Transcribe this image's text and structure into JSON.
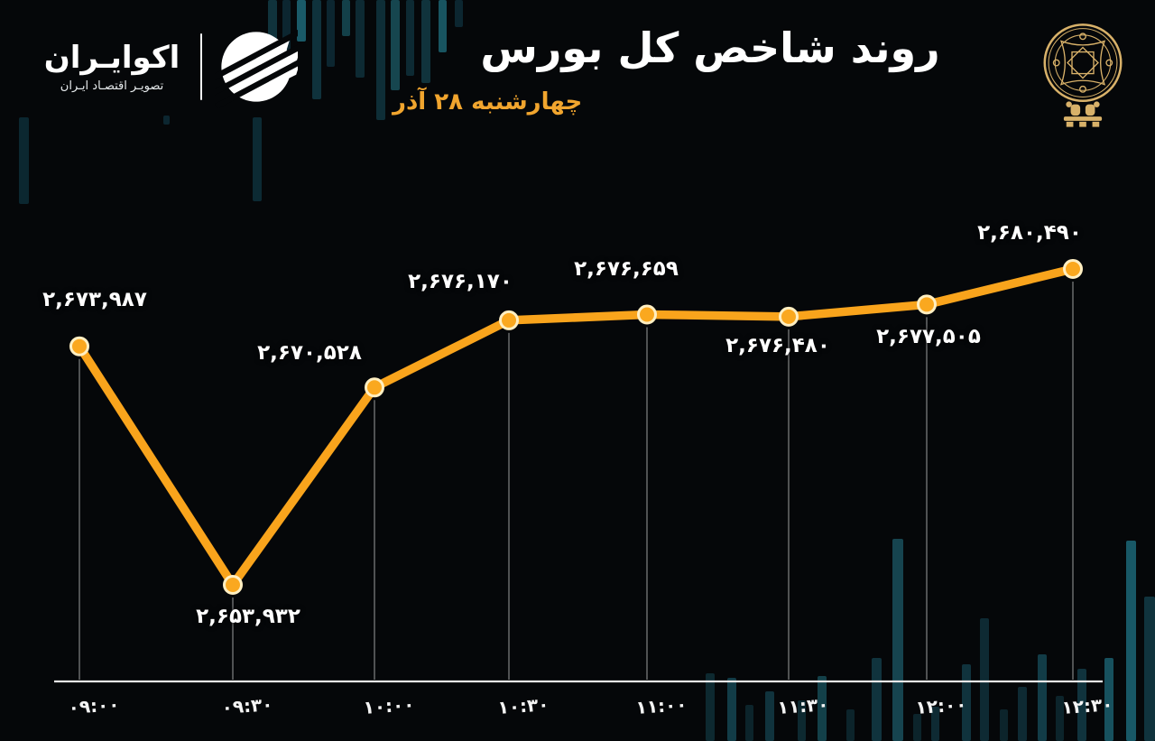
{
  "brand": {
    "name": "اکوایـران",
    "tagline": "تصویـر اقتصـاد ایـران"
  },
  "header": {
    "title": "روند شاخص کل بورس",
    "date": "چهارشنبه ۲۸ آذر"
  },
  "colors": {
    "background": "#050709",
    "line": "#F9A41C",
    "marker_fill": "#FAA81F",
    "marker_ring": "#FFEFC2",
    "axis": "#E8E8E8",
    "drop_line": "rgba(255,255,255,0.5)",
    "title": "#FFFFFF",
    "date": "#F1A52E",
    "emblem_gold": "#D8B169"
  },
  "chart_data": {
    "type": "line",
    "title": "روند شاخص کل بورس",
    "subtitle": "چهارشنبه ۲۸ آذر",
    "x": [
      "09:00",
      "09:30",
      "10:00",
      "10:30",
      "11:00",
      "11:30",
      "12:00",
      "12:30"
    ],
    "x_labels_fa": [
      "۰۹:۰۰",
      "۰۹:۳۰",
      "۱۰:۰۰",
      "۱۰:۳۰",
      "۱۱:۰۰",
      "۱۱:۳۰",
      "۱۲:۰۰",
      "۱۲:۳۰"
    ],
    "values": [
      2673987,
      2653932,
      2670528,
      2676170,
      2676659,
      2676480,
      2677505,
      2680490
    ],
    "value_labels_fa": [
      "۲,۶۷۳,۹۸۷",
      "۲,۶۵۳,۹۳۲",
      "۲,۶۷۰,۵۲۸",
      "۲,۶۷۶,۱۷۰",
      "۲,۶۷۶,۶۵۹",
      "۲,۶۷۶,۴۸۰",
      "۲,۶۷۷,۵۰۵",
      "۲,۶۸۰,۴۹۰"
    ],
    "ylim": [
      2650000,
      2685000
    ],
    "xlabel": "",
    "ylabel": "",
    "grid": false,
    "legend": "none",
    "series_name": "شاخص کل بورس"
  }
}
